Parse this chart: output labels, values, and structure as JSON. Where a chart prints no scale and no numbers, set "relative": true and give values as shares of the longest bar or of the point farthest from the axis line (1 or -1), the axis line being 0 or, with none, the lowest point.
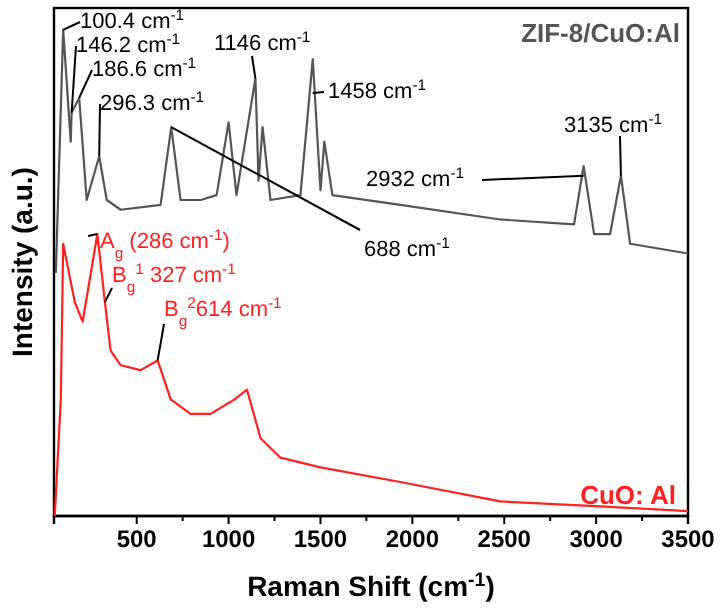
{
  "chart_data": {
    "type": "line",
    "xlabel": "Raman Shift (cm$^{-1}$)",
    "ylabel": "Intensity (a.u.)",
    "relative": true,
    "tick_labels": "x",
    "legend": false,
    "grid": false,
    "xlim": [
      50,
      3500
    ],
    "xticks": [
      500,
      {
        "value": 750,
        "label": null
      },
      1000,
      {
        "value": 1250,
        "label": null
      },
      1500,
      {
        "value": 1750,
        "label": null
      },
      2000,
      {
        "value": 2250,
        "label": null
      },
      2500,
      {
        "value": 2750,
        "label": null
      },
      3000,
      {
        "value": 3250,
        "label": null
      },
      3500
    ],
    "series": [
      {
        "name": "ZIF-8/CuO:Al",
        "color": "#555555",
        "x": [
          60,
          100,
          141,
          146,
          187,
          228,
          296,
          337,
          413,
          630,
          688,
          739,
          848,
          935,
          1000,
          1043,
          1146,
          1163,
          1185,
          1228,
          1391,
          1458,
          1500,
          1521,
          1565,
          1935,
          2478,
          2880,
          2932,
          2989,
          3076,
          3135,
          3185,
          3500
        ],
        "values": [
          0.5,
          1.0,
          0.77,
          0.83,
          0.86,
          0.65,
          0.74,
          0.65,
          0.63,
          0.64,
          0.8,
          0.65,
          0.65,
          0.66,
          0.81,
          0.66,
          0.9,
          0.69,
          0.8,
          0.65,
          0.66,
          0.94,
          0.67,
          0.77,
          0.66,
          0.64,
          0.61,
          0.6,
          0.72,
          0.58,
          0.58,
          0.7,
          0.56,
          0.54
        ]
      },
      {
        "name": "CuO: Al",
        "color": "#ff2020",
        "x": [
          54,
          87,
          100,
          163,
          206,
          286,
          327,
          358,
          413,
          521,
          614,
          685,
          793,
          902,
          1033,
          1100,
          1174,
          1282,
          1500,
          1935,
          2478,
          3022,
          3500
        ],
        "values": [
          0,
          0.24,
          0.56,
          0.44,
          0.4,
          0.58,
          0.44,
          0.34,
          0.31,
          0.3,
          0.32,
          0.24,
          0.21,
          0.21,
          0.24,
          0.26,
          0.16,
          0.12,
          0.1,
          0.07,
          0.03,
          0.02,
          0.01
        ]
      }
    ],
    "annotations": [
      {
        "text": "100.4 cm$^{-1}$",
        "x": 100,
        "y": 1.0
      },
      {
        "text": "146.2 cm$^{-1}$",
        "x": 146,
        "y": 0.83
      },
      {
        "text": "186.6 cm$^{-1}$",
        "x": 187,
        "y": 0.86
      },
      {
        "text": "296.3 cm$^{-1}$",
        "x": 296,
        "y": 0.74
      },
      {
        "text": "1146 cm$^{-1}$",
        "x": 1146,
        "y": 0.9
      },
      {
        "text": "1458 cm$^{-1}$",
        "x": 1458,
        "y": 0.87
      },
      {
        "text": "2932 cm$^{-1}$",
        "x": 2932,
        "y": 0.7
      },
      {
        "text": "3135 cm$^{-1}$",
        "x": 3135,
        "y": 0.7
      },
      {
        "text": "688 cm$^{-1}$",
        "x": 688,
        "y": 0.8
      },
      {
        "text": "A$_{g}$ (286 cm$^{-1}$)",
        "x": 286,
        "y": 0.58
      },
      {
        "text": "B$_{g}$$^{1}$ 327 cm$^{-1}$",
        "x": 327,
        "y": 0.44
      },
      {
        "text": "B$_{g}$$^{2}$614 cm$^{-1}$",
        "x": 614,
        "y": 0.32
      }
    ]
  }
}
